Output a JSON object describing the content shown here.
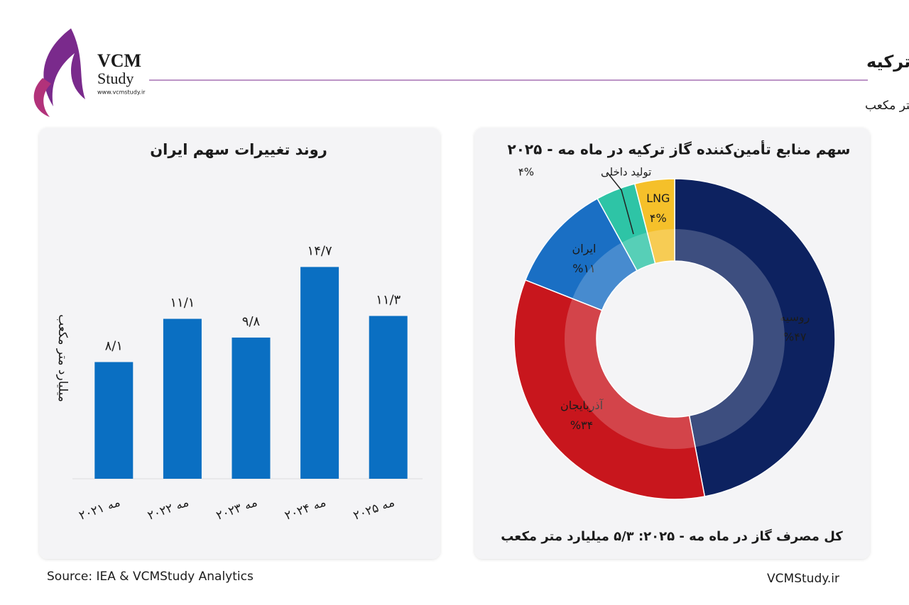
{
  "header": {
    "title": "نگاهی آماری به گاز مصرفی ترکیه",
    "unit": "واحد: میلیارد متر مکعب",
    "logo": {
      "line1": "VCM",
      "line2": "Study",
      "url": "www.vcmstudy.ir"
    }
  },
  "chart_data": [
    {
      "type": "bar",
      "title": "روند تغییرات سهم ایران",
      "y_label": "میلیارد متر مکعب",
      "categories": [
        "مه ۲۰۲۱",
        "مه ۲۰۲۲",
        "مه ۲۰۲۳",
        "مه ۲۰۲۴",
        "مه ۲۰۲۵"
      ],
      "values": [
        8.1,
        11.1,
        9.8,
        14.7,
        11.3
      ],
      "value_labels": [
        "۸/۱",
        "۱۱/۱",
        "۹/۸",
        "۱۴/۷",
        "۱۱/۳"
      ],
      "color": "#0a6fc2",
      "ylim": [
        0,
        16
      ]
    },
    {
      "type": "pie",
      "title": "سهم منابع تأمین‌کننده گاز ترکیه در ماه مه - ۲۰۲۵",
      "categories": [
        "روسیه",
        "آذربایجان",
        "ایران",
        "تولید داخلی",
        "LNG"
      ],
      "values": [
        47,
        34,
        11,
        4,
        4
      ],
      "value_labels": [
        "%۴۷",
        "%۳۴",
        "%۱۱",
        "۴%",
        "۴%"
      ],
      "colors": [
        "#0d2260",
        "#c8161d",
        "#1a6fc4",
        "#2ec4a6",
        "#f5c02a"
      ],
      "note": "کل مصرف گاز در ماه مه - ۲۰۲۵: ۵/۳ میلیارد متر مکعب"
    }
  ],
  "footer": {
    "source": "Source: IEA & VCMStudy Analytics",
    "site": "VCMStudy.ir"
  }
}
